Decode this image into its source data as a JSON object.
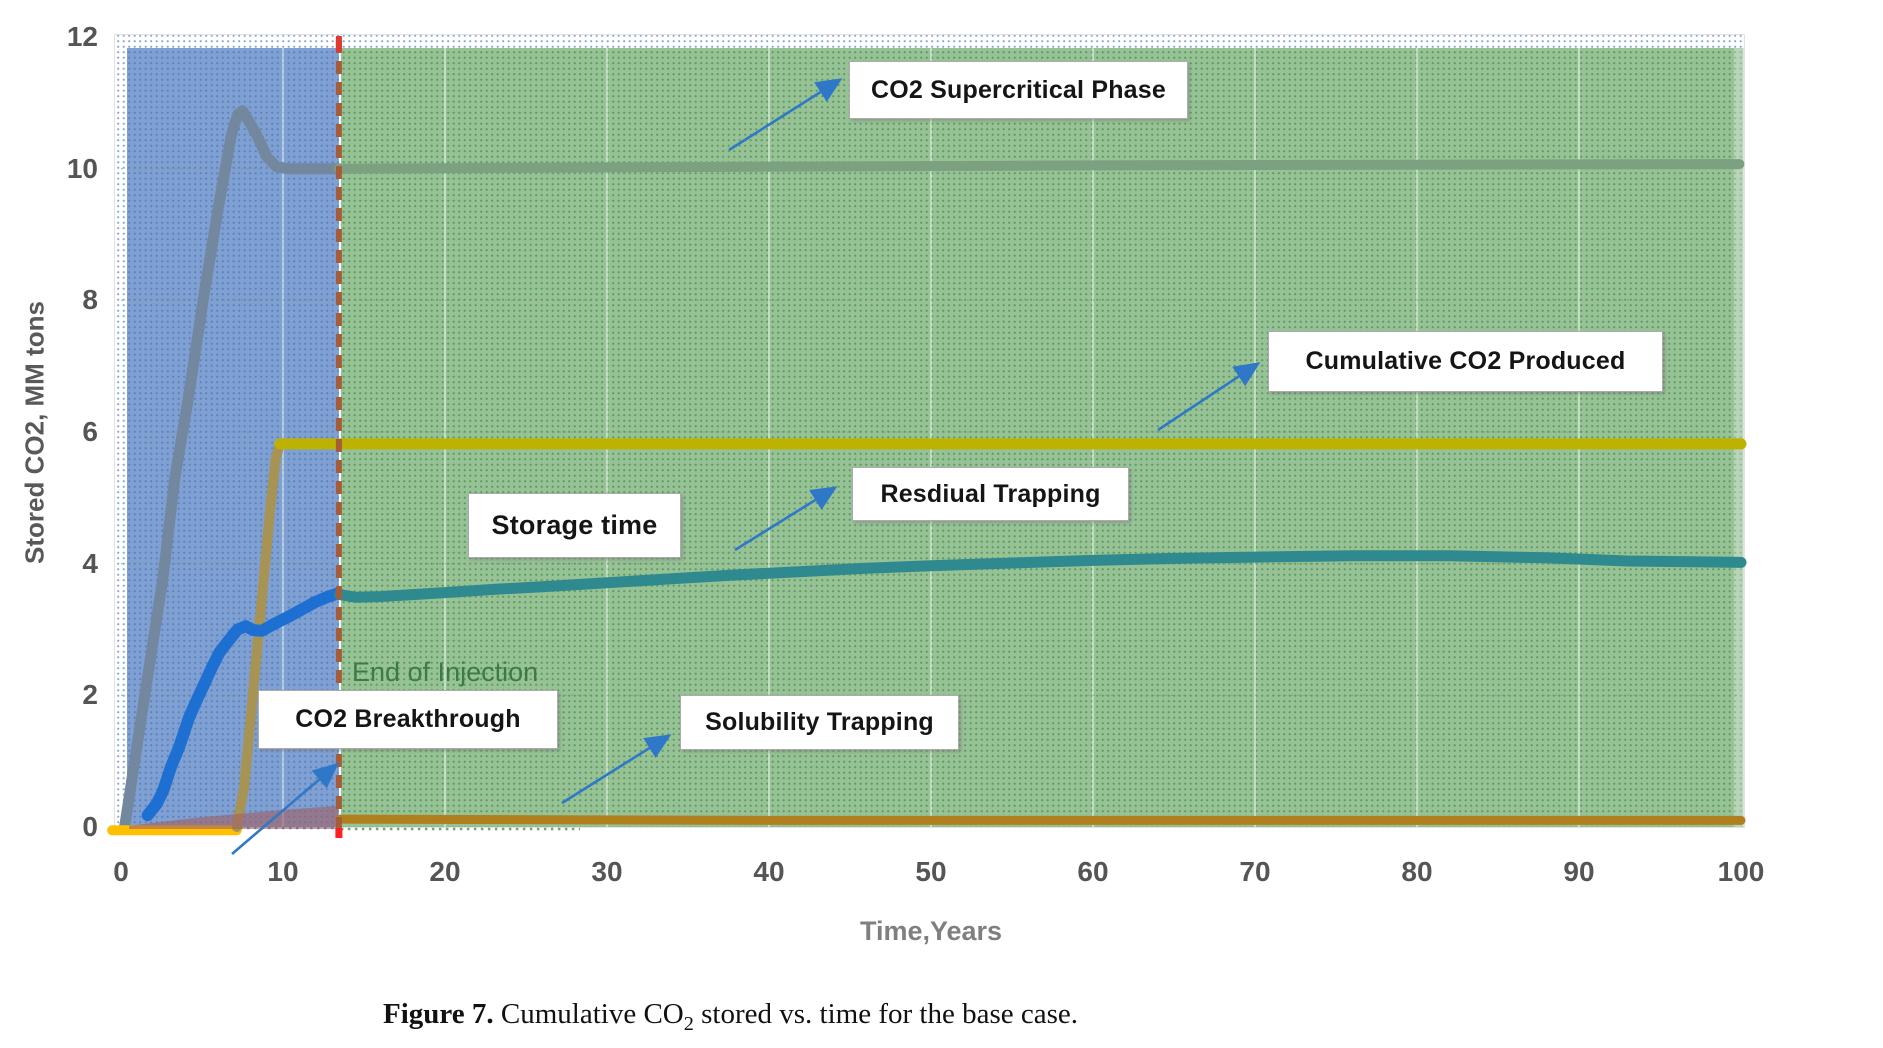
{
  "figure": {
    "caption_label": "Figure 7.",
    "caption_pre": " Cumulative CO",
    "caption_sub": "2",
    "caption_post": " stored vs. time for the base case."
  },
  "axes": {
    "y": {
      "title": "Stored CO2, MM tons",
      "ticks": [
        "12",
        "10",
        "8",
        "6",
        "4",
        "2",
        "0"
      ],
      "tick_values": [
        12,
        10,
        8,
        6,
        4,
        2,
        0
      ]
    },
    "x": {
      "title": "Time,Years",
      "ticks": [
        "0",
        "10",
        "20",
        "30",
        "40",
        "50",
        "60",
        "70",
        "80",
        "90",
        "100"
      ],
      "tick_values": [
        0,
        10,
        20,
        30,
        40,
        50,
        60,
        70,
        80,
        90,
        100
      ]
    }
  },
  "annotations": {
    "supercritical": "CO2 Supercritical Phase",
    "cumulative_produced": "Cumulative CO2 Produced",
    "storage_time": "Storage time",
    "residual": "Resdiual Trapping",
    "solubility": "Solubility Trapping",
    "breakthrough": "CO2 Breakthrough",
    "end_of_injection": "End of Injection"
  },
  "chart_data": {
    "type": "line",
    "xlabel": "Time,Years",
    "ylabel": "Stored CO2, MM tons",
    "xlim": [
      0,
      100
    ],
    "ylim": [
      0,
      12
    ],
    "grid": "dotted horizontal at every 2 units; faint vertical at every 10 years",
    "end_of_injection_year": 13.45,
    "end_of_injection_line_color": "#A55C38",
    "end_of_injection_tick_color": "#FF2020",
    "arrow_color": "#2F78C8",
    "regions": [
      {
        "name": "injection-period",
        "from": 0,
        "to": 13.45,
        "color": "#7FA0D2",
        "dot_color": "#5F81BA"
      },
      {
        "name": "storage-period",
        "from": 13.45,
        "to": 100,
        "color": "#97C296",
        "dot_color": "#5C9A60"
      }
    ],
    "series": [
      {
        "name": "CO2 Supercritical Phase",
        "segments": [
          {
            "color": "#73879E",
            "points": [
              [
                0.22,
                0
              ],
              [
                1.0,
                1.25
              ],
              [
                2.0,
                2.85
              ],
              [
                2.6,
                3.8
              ],
              [
                3.3,
                5.27
              ],
              [
                4.15,
                6.5
              ],
              [
                5.1,
                8.05
              ],
              [
                6.0,
                9.4
              ],
              [
                6.8,
                10.5
              ],
              [
                7.2,
                10.82
              ],
              [
                7.5,
                10.88
              ],
              [
                7.9,
                10.72
              ],
              [
                8.4,
                10.5
              ],
              [
                9.0,
                10.18
              ],
              [
                9.6,
                10.03
              ],
              [
                10.3,
                10.0
              ],
              [
                13.45,
                10.0
              ]
            ]
          },
          {
            "color": "#7BA181",
            "points": [
              [
                13.45,
                10.0
              ],
              [
                30,
                10.02
              ],
              [
                60,
                10.05
              ],
              [
                99.9,
                10.07
              ]
            ]
          }
        ]
      },
      {
        "name": "Cumulative CO2 Produced",
        "segments": [
          {
            "color": "#FFC000",
            "points": [
              [
                -0.55,
                -0.05
              ],
              [
                7.15,
                -0.05
              ]
            ]
          },
          {
            "color": "#A79455",
            "points": [
              [
                7.15,
                0.0
              ],
              [
                7.6,
                0.6
              ],
              [
                8.4,
                2.7
              ],
              [
                9.2,
                4.8
              ],
              [
                9.55,
                5.6
              ],
              [
                9.8,
                5.82
              ]
            ]
          },
          {
            "color": "#BDB202",
            "points": [
              [
                9.8,
                5.82
              ],
              [
                100,
                5.82
              ]
            ]
          }
        ]
      },
      {
        "name": "Residual Trapping",
        "segments": [
          {
            "color": "#1E6FD2",
            "points": [
              [
                1.65,
                0.18
              ],
              [
                2.2,
                0.35
              ],
              [
                2.6,
                0.55
              ],
              [
                3.1,
                0.92
              ],
              [
                3.6,
                1.22
              ],
              [
                4.2,
                1.66
              ],
              [
                4.7,
                1.94
              ],
              [
                5.2,
                2.2
              ],
              [
                5.6,
                2.42
              ],
              [
                6.1,
                2.66
              ],
              [
                6.7,
                2.85
              ],
              [
                7.2,
                3.0
              ],
              [
                7.7,
                3.05
              ],
              [
                8.2,
                2.99
              ],
              [
                8.7,
                2.98
              ],
              [
                9.2,
                3.05
              ],
              [
                9.8,
                3.13
              ],
              [
                10.4,
                3.2
              ],
              [
                11.2,
                3.31
              ],
              [
                12.0,
                3.42
              ],
              [
                12.8,
                3.5
              ],
              [
                13.4,
                3.55
              ]
            ]
          },
          {
            "color": "#2E8A8F",
            "points": [
              [
                13.5,
                3.53
              ],
              [
                14.5,
                3.49
              ],
              [
                16,
                3.5
              ],
              [
                18,
                3.53
              ],
              [
                20,
                3.56
              ],
              [
                23,
                3.61
              ],
              [
                26,
                3.65
              ],
              [
                30,
                3.71
              ],
              [
                34,
                3.77
              ],
              [
                38,
                3.83
              ],
              [
                42,
                3.88
              ],
              [
                46,
                3.93
              ],
              [
                50,
                3.97
              ],
              [
                55,
                4.01
              ],
              [
                60,
                4.05
              ],
              [
                65,
                4.08
              ],
              [
                70,
                4.1
              ],
              [
                76,
                4.12
              ],
              [
                82,
                4.12
              ],
              [
                88,
                4.09
              ],
              [
                93,
                4.04
              ],
              [
                100,
                4.02
              ]
            ]
          }
        ]
      },
      {
        "name": "Solubility Trapping",
        "area": {
          "fill_color": "rgba(160,95,100,0.6)",
          "points": [
            [
              0.5,
              0.02
            ],
            [
              5,
              0.15
            ],
            [
              10,
              0.26
            ],
            [
              13.4,
              0.32
            ]
          ]
        },
        "segments": [
          {
            "color": "#B07F1E",
            "points": [
              [
                13.5,
                0.12
              ],
              [
                40,
                0.1
              ],
              [
                100,
                0.1
              ]
            ]
          }
        ]
      }
    ]
  }
}
